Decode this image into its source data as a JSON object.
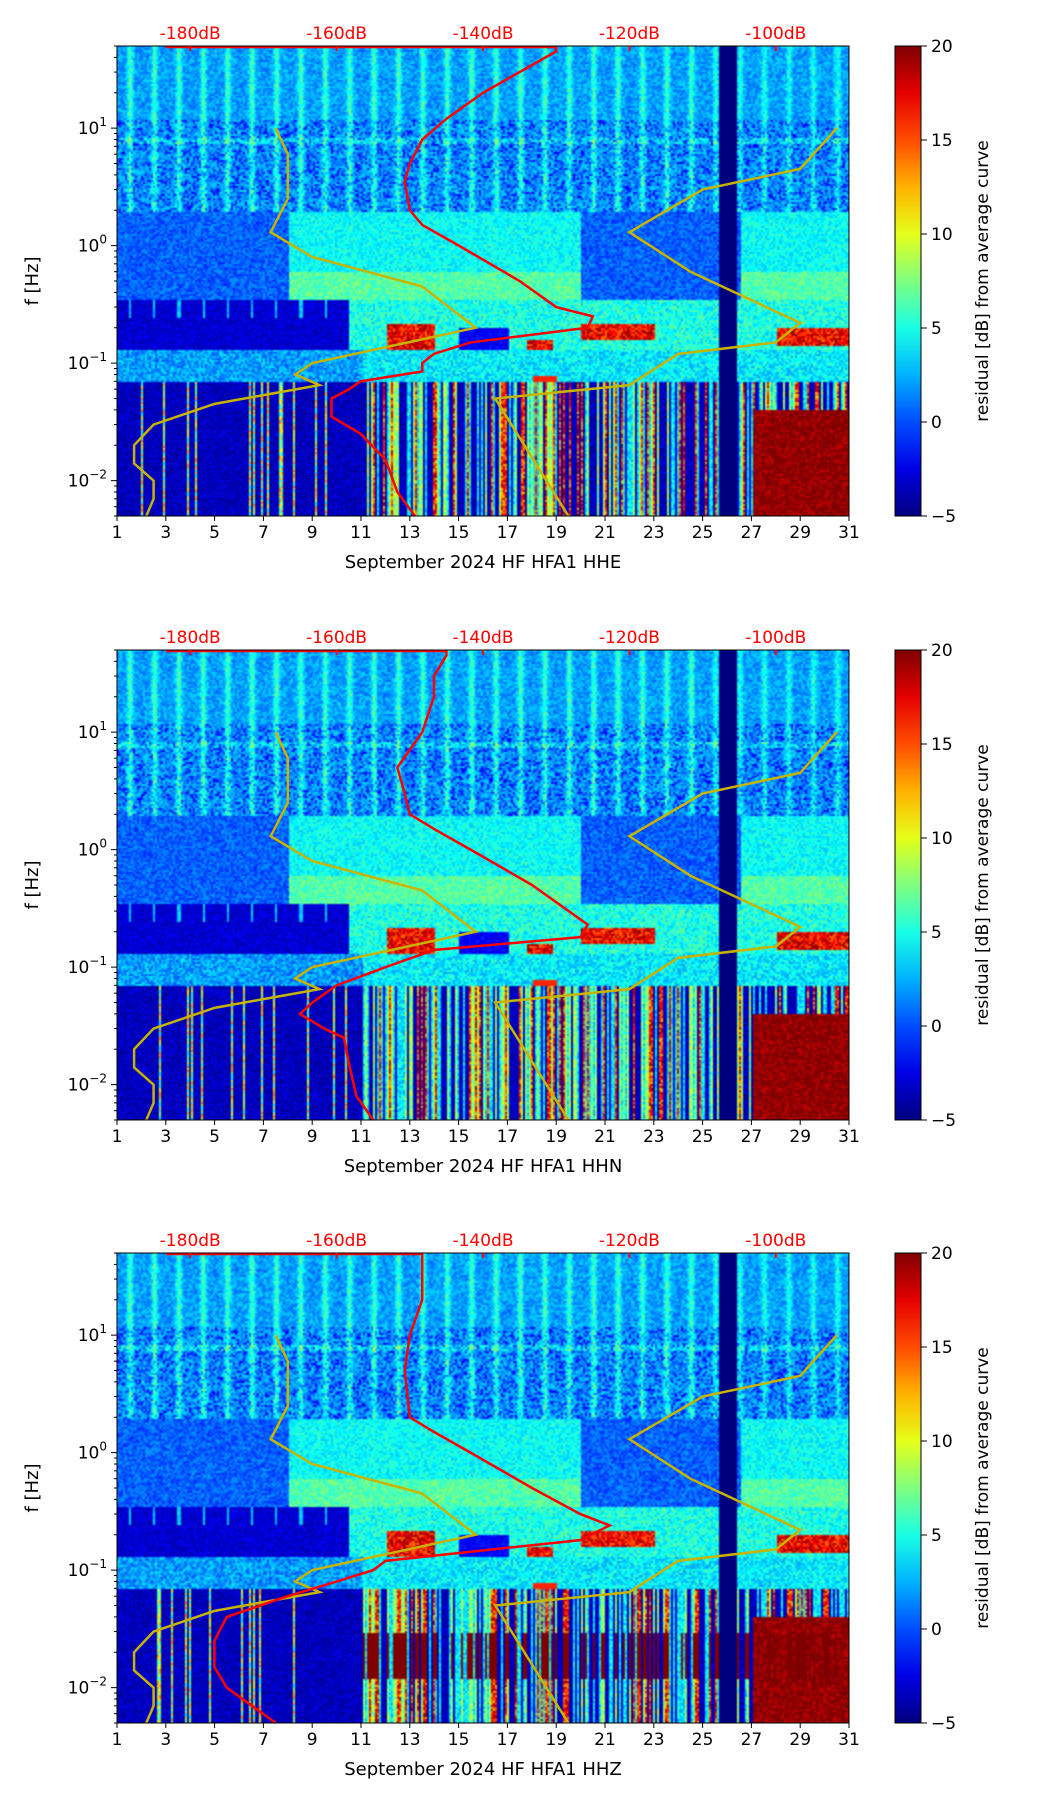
{
  "chart_data": [
    {
      "type": "heatmap",
      "xlabel": "September 2024 HF HFA1  HHE",
      "ylabel": "f [Hz]",
      "colorbar_label": "residual [dB] from average curve",
      "x_ticks": [
        "1",
        "3",
        "5",
        "7",
        "9",
        "11",
        "13",
        "15",
        "17",
        "19",
        "21",
        "23",
        "25",
        "27",
        "29",
        "31"
      ],
      "xlim": [
        1,
        31
      ],
      "ylim": [
        0.005,
        50
      ],
      "yscale": "log",
      "y_ticks": [
        "10^-2",
        "10^-1",
        "10^0",
        "10^1"
      ],
      "top_ticks": [
        "-180dB",
        "-160dB",
        "-140dB",
        "-120dB",
        "-100dB"
      ],
      "top_tick_days": [
        4,
        10,
        16,
        22,
        28
      ],
      "colorbar_ticks": [
        "20",
        "15",
        "10",
        "5",
        "0",
        "−5"
      ],
      "clim": [
        -5,
        20
      ],
      "red_curve_f_dB": [
        [
          50,
          -183.3
        ],
        [
          50,
          -130
        ],
        [
          45,
          -130
        ],
        [
          30,
          -135
        ],
        [
          20,
          -140
        ],
        [
          12,
          -145
        ],
        [
          8,
          -148.3
        ],
        [
          5,
          -150
        ],
        [
          3.5,
          -150.7
        ],
        [
          2,
          -150
        ],
        [
          1.5,
          -148.3
        ],
        [
          1.0,
          -143.3
        ],
        [
          0.5,
          -135
        ],
        [
          0.3,
          -130
        ],
        [
          0.25,
          -125
        ],
        [
          0.2,
          -125.7
        ],
        [
          0.15,
          -141.7
        ],
        [
          0.12,
          -146.7
        ],
        [
          0.1,
          -148.3
        ],
        [
          0.085,
          -148.3
        ],
        [
          0.07,
          -156.7
        ],
        [
          0.06,
          -158.3
        ],
        [
          0.05,
          -160.7
        ],
        [
          0.035,
          -160.7
        ],
        [
          0.025,
          -156.7
        ],
        [
          0.015,
          -153.3
        ],
        [
          0.008,
          -151.7
        ],
        [
          0.005,
          -149.3
        ]
      ],
      "yellow_left_f_day": [
        [
          10,
          7.5
        ],
        [
          6,
          8
        ],
        [
          2.5,
          8
        ],
        [
          1.3,
          7.3
        ],
        [
          0.8,
          9
        ],
        [
          0.45,
          13.5
        ],
        [
          0.2,
          15.7
        ],
        [
          0.1,
          9
        ],
        [
          0.08,
          8.3
        ],
        [
          0.065,
          9.3
        ],
        [
          0.045,
          5
        ],
        [
          0.03,
          2.5
        ],
        [
          0.02,
          1.7
        ],
        [
          0.014,
          1.7
        ],
        [
          0.01,
          2.5
        ],
        [
          0.007,
          2.5
        ],
        [
          0.005,
          2.2
        ]
      ],
      "yellow_right_f_day": [
        [
          10,
          30.5
        ],
        [
          4.5,
          29
        ],
        [
          3,
          25
        ],
        [
          1.3,
          22
        ],
        [
          0.6,
          24.5
        ],
        [
          0.22,
          29
        ],
        [
          0.15,
          28
        ],
        [
          0.12,
          24
        ],
        [
          0.065,
          22
        ],
        [
          0.05,
          16.5
        ],
        [
          0.005,
          19.5
        ]
      ],
      "seed": 11
    },
    {
      "type": "heatmap",
      "xlabel": "September 2024 HF HFA1  HHN",
      "ylabel": "f [Hz]",
      "colorbar_label": "residual [dB] from average curve",
      "x_ticks": [
        "1",
        "3",
        "5",
        "7",
        "9",
        "11",
        "13",
        "15",
        "17",
        "19",
        "21",
        "23",
        "25",
        "27",
        "29",
        "31"
      ],
      "xlim": [
        1,
        31
      ],
      "ylim": [
        0.005,
        50
      ],
      "yscale": "log",
      "y_ticks": [
        "10^-2",
        "10^-1",
        "10^0",
        "10^1"
      ],
      "top_ticks": [
        "-180dB",
        "-160dB",
        "-140dB",
        "-120dB",
        "-100dB"
      ],
      "top_tick_days": [
        4,
        10,
        16,
        22,
        28
      ],
      "colorbar_ticks": [
        "20",
        "15",
        "10",
        "5",
        "0",
        "−5"
      ],
      "clim": [
        -5,
        20
      ],
      "red_curve_f_dB": [
        [
          50,
          -183.3
        ],
        [
          50,
          -145
        ],
        [
          45,
          -145
        ],
        [
          30,
          -146.7
        ],
        [
          20,
          -146.7
        ],
        [
          10,
          -148.3
        ],
        [
          5,
          -151.7
        ],
        [
          3,
          -150.7
        ],
        [
          2,
          -150
        ],
        [
          1.5,
          -146.7
        ],
        [
          1.0,
          -141.7
        ],
        [
          0.5,
          -133.3
        ],
        [
          0.3,
          -128.3
        ],
        [
          0.23,
          -125.7
        ],
        [
          0.18,
          -126.7
        ],
        [
          0.14,
          -146.7
        ],
        [
          0.1,
          -153.3
        ],
        [
          0.07,
          -160
        ],
        [
          0.05,
          -163.3
        ],
        [
          0.04,
          -165
        ],
        [
          0.03,
          -161.7
        ],
        [
          0.025,
          -159
        ],
        [
          0.015,
          -158.3
        ],
        [
          0.008,
          -157.3
        ],
        [
          0.005,
          -155
        ]
      ],
      "yellow_left_f_day": [
        [
          10,
          7.5
        ],
        [
          6,
          8
        ],
        [
          2.5,
          8
        ],
        [
          1.3,
          7.3
        ],
        [
          0.8,
          9
        ],
        [
          0.45,
          13.5
        ],
        [
          0.2,
          15.7
        ],
        [
          0.1,
          9
        ],
        [
          0.08,
          8.3
        ],
        [
          0.065,
          9.3
        ],
        [
          0.045,
          5
        ],
        [
          0.03,
          2.5
        ],
        [
          0.02,
          1.7
        ],
        [
          0.014,
          1.7
        ],
        [
          0.01,
          2.5
        ],
        [
          0.007,
          2.5
        ],
        [
          0.005,
          2.2
        ]
      ],
      "yellow_right_f_day": [
        [
          10,
          30.5
        ],
        [
          4.5,
          29
        ],
        [
          3,
          25
        ],
        [
          1.3,
          22
        ],
        [
          0.6,
          24.5
        ],
        [
          0.22,
          29
        ],
        [
          0.15,
          28
        ],
        [
          0.12,
          24
        ],
        [
          0.065,
          22
        ],
        [
          0.05,
          16.5
        ],
        [
          0.005,
          19.5
        ]
      ],
      "seed": 23
    },
    {
      "type": "heatmap",
      "xlabel": "September 2024 HF HFA1  HHZ",
      "ylabel": "f [Hz]",
      "colorbar_label": "residual [dB] from average curve",
      "x_ticks": [
        "1",
        "3",
        "5",
        "7",
        "9",
        "11",
        "13",
        "15",
        "17",
        "19",
        "21",
        "23",
        "25",
        "27",
        "29",
        "31"
      ],
      "xlim": [
        1,
        31
      ],
      "ylim": [
        0.005,
        50
      ],
      "yscale": "log",
      "y_ticks": [
        "10^-2",
        "10^-1",
        "10^0",
        "10^1"
      ],
      "top_ticks": [
        "-180dB",
        "-160dB",
        "-140dB",
        "-120dB",
        "-100dB"
      ],
      "top_tick_days": [
        4,
        10,
        16,
        22,
        28
      ],
      "colorbar_ticks": [
        "20",
        "15",
        "10",
        "5",
        "0",
        "−5"
      ],
      "clim": [
        -5,
        20
      ],
      "red_curve_f_dB": [
        [
          50,
          -183.3
        ],
        [
          50,
          -148.3
        ],
        [
          45,
          -148.3
        ],
        [
          20,
          -148.3
        ],
        [
          10,
          -150
        ],
        [
          5,
          -150.7
        ],
        [
          2,
          -150
        ],
        [
          1.5,
          -146.7
        ],
        [
          1.0,
          -141.7
        ],
        [
          0.5,
          -133.3
        ],
        [
          0.3,
          -126.7
        ],
        [
          0.24,
          -122.7
        ],
        [
          0.18,
          -126.7
        ],
        [
          0.14,
          -143.3
        ],
        [
          0.12,
          -153.3
        ],
        [
          0.1,
          -155
        ],
        [
          0.08,
          -160
        ],
        [
          0.06,
          -166.7
        ],
        [
          0.04,
          -175
        ],
        [
          0.025,
          -176.7
        ],
        [
          0.015,
          -176.7
        ],
        [
          0.01,
          -175
        ],
        [
          0.005,
          -168.3
        ]
      ],
      "yellow_left_f_day": [
        [
          10,
          7.5
        ],
        [
          6,
          8
        ],
        [
          2.5,
          8
        ],
        [
          1.3,
          7.3
        ],
        [
          0.8,
          9
        ],
        [
          0.45,
          13.5
        ],
        [
          0.2,
          15.7
        ],
        [
          0.1,
          9
        ],
        [
          0.08,
          8.3
        ],
        [
          0.065,
          9.3
        ],
        [
          0.045,
          5
        ],
        [
          0.03,
          2.5
        ],
        [
          0.02,
          1.7
        ],
        [
          0.014,
          1.7
        ],
        [
          0.01,
          2.5
        ],
        [
          0.007,
          2.5
        ],
        [
          0.005,
          2.2
        ]
      ],
      "yellow_right_f_day": [
        [
          10,
          30.5
        ],
        [
          4.5,
          29
        ],
        [
          3,
          25
        ],
        [
          1.3,
          22
        ],
        [
          0.6,
          24.5
        ],
        [
          0.22,
          29
        ],
        [
          0.15,
          28
        ],
        [
          0.12,
          24
        ],
        [
          0.065,
          22
        ],
        [
          0.05,
          16.5
        ],
        [
          0.005,
          19.5
        ]
      ],
      "seed": 37
    }
  ],
  "colors": {
    "red_curve": "#ff0000",
    "yellow_curve": "#c8b400",
    "top_labels": "#ff0000"
  }
}
